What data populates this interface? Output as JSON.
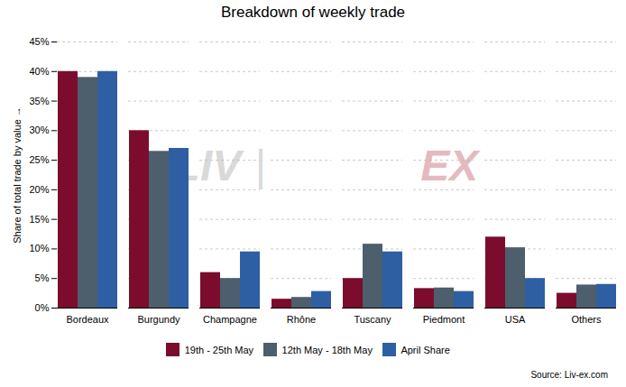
{
  "chart_data": {
    "type": "bar",
    "title": "Breakdown of weekly trade",
    "ylabel": "Share of total trade by value",
    "source": "Source: Liv-ex.com",
    "annotations": [
      "LIV",
      "|",
      "EX"
    ],
    "categories": [
      "Bordeaux",
      "Burgundy",
      "Champagne",
      "Rhône",
      "Tuscany",
      "Piedmont",
      "USA",
      "Others"
    ],
    "series": [
      {
        "name": "19th - 25th May",
        "color": "#7B0C2E",
        "values": [
          0.4,
          0.3,
          0.06,
          0.015,
          0.05,
          0.033,
          0.12,
          0.025
        ]
      },
      {
        "name": "12th May - 18th May",
        "color": "#4D5E6C",
        "values": [
          0.39,
          0.265,
          0.05,
          0.018,
          0.108,
          0.034,
          0.102,
          0.039
        ]
      },
      {
        "name": "April Share",
        "color": "#2E5FA3",
        "values": [
          0.4,
          0.27,
          0.095,
          0.028,
          0.095,
          0.028,
          0.05,
          0.04
        ]
      }
    ],
    "ylim": [
      0,
      0.45
    ],
    "yticks": [
      {
        "value": 0.0,
        "label": "0%"
      },
      {
        "value": 0.05,
        "label": "5%"
      },
      {
        "value": 0.1,
        "label": "10%"
      },
      {
        "value": 0.15,
        "label": "15%"
      },
      {
        "value": 0.2,
        "label": "20%"
      },
      {
        "value": 0.25,
        "label": "25%"
      },
      {
        "value": 0.3,
        "label": "30%"
      },
      {
        "value": 0.35,
        "label": "35%"
      },
      {
        "value": 0.4,
        "label": "40%"
      },
      {
        "value": 0.45,
        "label": "45%"
      }
    ],
    "grid": true,
    "legend": "bottom"
  }
}
